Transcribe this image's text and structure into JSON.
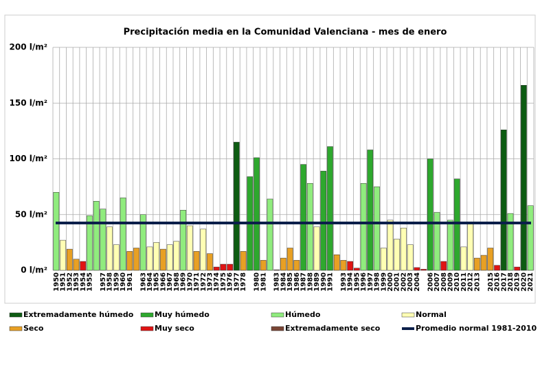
{
  "chart_data": {
    "type": "bar",
    "title": "Precipitación media en la Comunidad Valenciana - mes de enero",
    "categories": [
      "1950",
      "1951",
      "1952",
      "1953",
      "1954",
      "1955",
      null,
      "1957",
      "1958",
      "1959",
      "1960",
      "1961",
      null,
      "1963",
      "1964",
      "1965",
      "1966",
      "1967",
      "1968",
      "1969",
      "1970",
      "1971",
      "1972",
      "1973",
      "1974",
      "1975",
      "1976",
      "1977",
      "1978",
      null,
      "1980",
      "1981",
      null,
      "1983",
      "1984",
      "1985",
      "1986",
      "1987",
      "1988",
      "1989",
      "1990",
      "1991",
      null,
      "1993",
      "1994",
      "1995",
      "1996",
      "1997",
      "1998",
      "1999",
      "2000",
      "2001",
      "2002",
      "2003",
      "2004",
      null,
      "2006",
      "2007",
      "2008",
      "2009",
      "2010",
      "2011",
      "2012",
      "2013",
      null,
      "2015",
      "2016",
      "2017",
      "2018",
      "2019",
      "2020",
      "2021"
    ],
    "series": [
      {
        "name": "Extremadamente húmedo",
        "color": "#0d5c12",
        "values": [
          null,
          null,
          null,
          null,
          null,
          null,
          null,
          null,
          null,
          null,
          null,
          null,
          null,
          null,
          null,
          null,
          null,
          null,
          null,
          null,
          null,
          null,
          null,
          null,
          null,
          null,
          null,
          115,
          null,
          null,
          null,
          null,
          null,
          null,
          null,
          null,
          null,
          null,
          null,
          null,
          null,
          null,
          null,
          null,
          null,
          null,
          null,
          null,
          null,
          null,
          null,
          null,
          null,
          null,
          null,
          null,
          null,
          null,
          null,
          null,
          null,
          null,
          null,
          null,
          null,
          null,
          null,
          126,
          null,
          null,
          166,
          null
        ]
      },
      {
        "name": "Muy húmedo",
        "color": "#2ea82e",
        "values": [
          null,
          null,
          null,
          null,
          null,
          null,
          null,
          null,
          null,
          null,
          null,
          null,
          null,
          null,
          null,
          null,
          null,
          null,
          null,
          null,
          null,
          null,
          null,
          null,
          null,
          null,
          null,
          null,
          null,
          84,
          101,
          null,
          null,
          null,
          null,
          null,
          null,
          95,
          null,
          null,
          89,
          111,
          null,
          null,
          null,
          null,
          null,
          108,
          null,
          null,
          null,
          null,
          null,
          null,
          null,
          null,
          100,
          null,
          null,
          null,
          82,
          null,
          null,
          null,
          null,
          null,
          null,
          null,
          null,
          null,
          null,
          null
        ]
      },
      {
        "name": "Húmedo",
        "color": "#90ec7e",
        "values": [
          70,
          null,
          null,
          null,
          null,
          49,
          62,
          55,
          null,
          null,
          65,
          null,
          null,
          50,
          null,
          null,
          null,
          null,
          null,
          54,
          null,
          null,
          null,
          null,
          null,
          null,
          null,
          null,
          null,
          null,
          null,
          null,
          64,
          null,
          null,
          null,
          null,
          null,
          78,
          null,
          null,
          null,
          null,
          null,
          null,
          null,
          78,
          null,
          75,
          null,
          null,
          null,
          null,
          null,
          null,
          null,
          null,
          52,
          null,
          45,
          null,
          null,
          null,
          null,
          null,
          null,
          null,
          null,
          51,
          null,
          null,
          58
        ]
      },
      {
        "name": "Normal",
        "color": "#ffffb4",
        "values": [
          null,
          27,
          null,
          null,
          null,
          null,
          null,
          null,
          39,
          23,
          null,
          null,
          null,
          null,
          21,
          25,
          null,
          23,
          26,
          null,
          40,
          null,
          37,
          null,
          null,
          null,
          null,
          null,
          null,
          null,
          null,
          null,
          null,
          null,
          null,
          null,
          null,
          null,
          null,
          39,
          null,
          null,
          null,
          null,
          null,
          null,
          null,
          null,
          null,
          20,
          45,
          28,
          38,
          23,
          null,
          null,
          null,
          null,
          null,
          null,
          null,
          21,
          42,
          null,
          null,
          null,
          null,
          null,
          null,
          null,
          null,
          null
        ]
      },
      {
        "name": "Seco",
        "color": "#e8a024",
        "values": [
          null,
          null,
          19,
          10,
          null,
          null,
          null,
          null,
          null,
          null,
          null,
          17,
          20,
          null,
          null,
          null,
          19,
          null,
          null,
          null,
          null,
          17,
          null,
          15,
          null,
          null,
          null,
          null,
          17,
          null,
          null,
          9,
          null,
          null,
          11,
          20,
          9,
          null,
          null,
          null,
          null,
          null,
          14,
          9,
          null,
          null,
          null,
          null,
          null,
          null,
          null,
          null,
          null,
          null,
          null,
          null,
          null,
          null,
          null,
          null,
          null,
          null,
          null,
          11,
          13.5,
          20,
          null,
          null,
          null,
          null,
          null,
          null
        ]
      },
      {
        "name": "Muy seco",
        "color": "#e01414",
        "values": [
          null,
          null,
          null,
          null,
          8,
          null,
          null,
          null,
          null,
          null,
          null,
          null,
          null,
          null,
          null,
          null,
          null,
          null,
          null,
          null,
          null,
          null,
          null,
          null,
          3,
          5.5,
          5.5,
          null,
          null,
          null,
          null,
          null,
          null,
          null,
          null,
          null,
          null,
          null,
          null,
          null,
          null,
          null,
          null,
          null,
          8,
          2,
          null,
          null,
          null,
          null,
          null,
          null,
          null,
          null,
          2.5,
          1,
          null,
          null,
          8,
          null,
          null,
          null,
          null,
          null,
          null,
          null,
          4.5,
          null,
          null,
          3,
          null,
          null
        ]
      },
      {
        "name": "Extremadamente seco",
        "color": "#7a4636",
        "values": [
          null,
          null,
          null,
          null,
          null,
          null,
          null,
          null,
          null,
          null,
          null,
          null,
          null,
          null,
          null,
          null,
          null,
          null,
          null,
          null,
          null,
          null,
          null,
          null,
          null,
          null,
          null,
          null,
          null,
          null,
          null,
          null,
          null,
          0.5,
          null,
          null,
          null,
          null,
          null,
          null,
          null,
          null,
          null,
          null,
          null,
          null,
          null,
          null,
          null,
          null,
          null,
          null,
          null,
          null,
          null,
          null,
          null,
          null,
          null,
          null,
          null,
          null,
          null,
          null,
          null,
          null,
          null,
          null,
          null,
          null,
          null,
          null
        ]
      }
    ],
    "average": {
      "name": "Promedio normal 1981-2010",
      "value": 42.5,
      "color": "#0b1f4a"
    },
    "ylim": [
      0,
      200
    ],
    "yticks": [
      {
        "value": 0,
        "label": "0 l/m²"
      },
      {
        "value": 50,
        "label": "50 l/m²"
      },
      {
        "value": 100,
        "label": "100 l/m²"
      },
      {
        "value": 150,
        "label": "150 l/m²"
      },
      {
        "value": 200,
        "label": "200 l/m²"
      }
    ],
    "grid": true
  }
}
